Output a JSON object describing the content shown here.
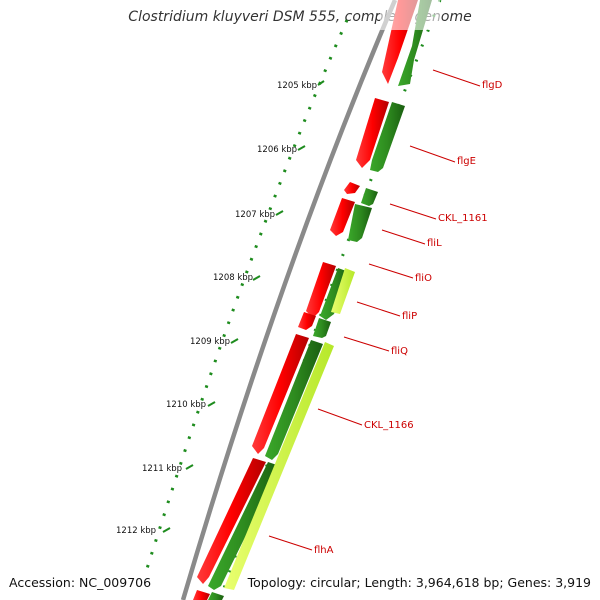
{
  "title": "Clostridium kluyveri DSM 555, complete genome",
  "footer": {
    "accession": "Accession: NC_009706",
    "summary": "Topology: circular; Length: 3,964,618 bp; Genes: 3,919"
  },
  "colors": {
    "backbone": "#8a8a8a",
    "gene_red": "#ff0000",
    "gene_red_dark": "#cc0000",
    "gene_green": "#2e8b1f",
    "gene_green_dark": "#1c6a12",
    "gene_yellow": "#d4ff3a",
    "tick": "#1e8c1e",
    "label": "#cc0000"
  },
  "ruler": [
    {
      "label": "1205 kbp"
    },
    {
      "label": "1206 kbp"
    },
    {
      "label": "1207 kbp"
    },
    {
      "label": "1208 kbp"
    },
    {
      "label": "1209 kbp"
    },
    {
      "label": "1210 kbp"
    },
    {
      "label": "1211 kbp"
    },
    {
      "label": "1212 kbp"
    }
  ],
  "gene_labels": [
    {
      "name": "flgD"
    },
    {
      "name": "flgE"
    },
    {
      "name": "CKL_1161"
    },
    {
      "name": "fliL"
    },
    {
      "name": "fliO"
    },
    {
      "name": "fliP"
    },
    {
      "name": "fliQ"
    },
    {
      "name": "CKL_1166"
    },
    {
      "name": "flhA"
    }
  ]
}
